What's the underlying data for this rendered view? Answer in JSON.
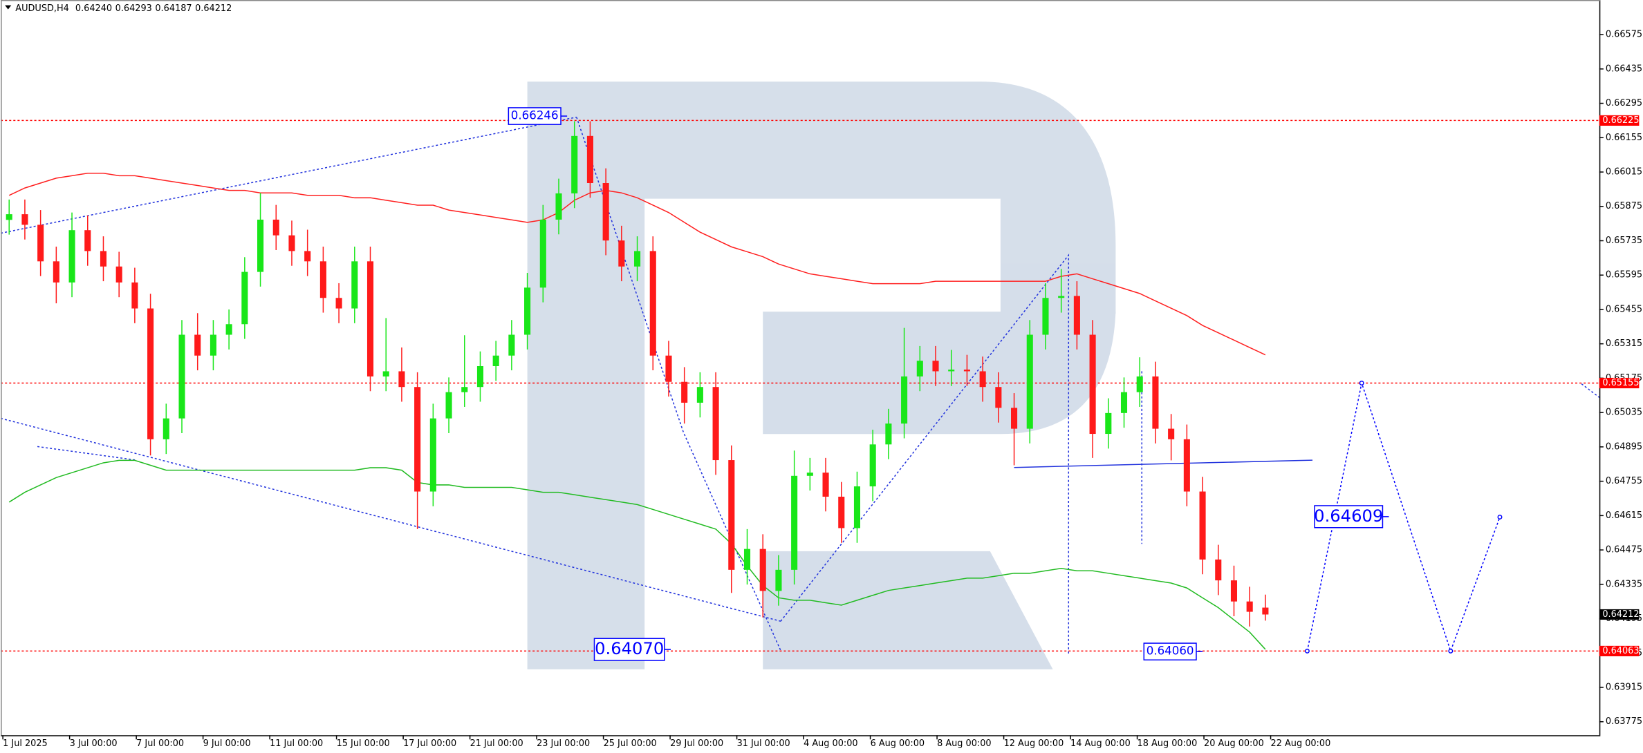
{
  "chart_data": {
    "type": "candlestick",
    "title": "AUDUSD,H4",
    "header_values": [
      "0.64240",
      "0.64293",
      "0.64187",
      "0.64212"
    ],
    "up_color": "#19e619",
    "down_color": "#ff1a1a",
    "open": [
      0.6582,
      0.65843,
      0.658,
      0.65651,
      0.65565,
      0.65778,
      0.65693,
      0.6563,
      0.65565,
      0.65459,
      0.64926,
      0.65011,
      0.65352,
      0.65267,
      0.65352,
      0.65395,
      0.65608,
      0.65821,
      0.65757,
      0.65693,
      0.65651,
      0.65502,
      0.65459,
      0.65651,
      0.65182,
      0.65203,
      0.65139,
      0.64713,
      0.65011,
      0.65118,
      0.65139,
      0.65224,
      0.65267,
      0.65352,
      0.65544,
      0.65821,
      0.65928,
      0.66162,
      0.6597,
      0.65736,
      0.6563,
      0.65693,
      0.65267,
      0.6516,
      0.65075,
      0.65139,
      0.64841,
      0.64394,
      0.64479,
      0.64308,
      0.64394,
      0.64777,
      0.6479,
      0.64692,
      0.64564,
      0.64734,
      0.64905,
      0.6499,
      0.65182,
      0.65246,
      0.65203,
      0.6521,
      0.65203,
      0.65139,
      0.65054,
      0.64969,
      0.65352,
      0.65502,
      0.6551,
      0.65352,
      0.64948,
      0.65033,
      0.65118,
      0.65182,
      0.64969,
      0.64926,
      0.64713,
      0.64436,
      0.64351,
      0.64265,
      0.6424
    ],
    "high": [
      0.65903,
      0.65903,
      0.6586,
      0.65711,
      0.6585,
      0.65838,
      0.65753,
      0.6569,
      0.65625,
      0.65519,
      0.65071,
      0.65412,
      0.6544,
      0.65412,
      0.65455,
      0.65668,
      0.6593,
      0.65881,
      0.65817,
      0.6578,
      0.65711,
      0.65562,
      0.65711,
      0.65711,
      0.6542,
      0.653,
      0.65199,
      0.65071,
      0.65178,
      0.6535,
      0.65284,
      0.65327,
      0.65412,
      0.65604,
      0.65881,
      0.65988,
      0.66222,
      0.66222,
      0.6603,
      0.65796,
      0.65753,
      0.65753,
      0.65327,
      0.6522,
      0.65199,
      0.65199,
      0.64901,
      0.6456,
      0.64539,
      0.64454,
      0.6488,
      0.6485,
      0.6485,
      0.64752,
      0.64794,
      0.64965,
      0.6505,
      0.6538,
      0.65306,
      0.65306,
      0.6529,
      0.6527,
      0.65263,
      0.65199,
      0.65114,
      0.65412,
      0.65562,
      0.6562,
      0.6557,
      0.65412,
      0.65093,
      0.65178,
      0.6526,
      0.65242,
      0.65029,
      0.64986,
      0.64773,
      0.64496,
      0.64411,
      0.64325,
      0.64293
    ],
    "low": [
      0.6576,
      0.6574,
      0.65591,
      0.6548,
      0.65505,
      0.65633,
      0.6557,
      0.65505,
      0.65399,
      0.6486,
      0.64866,
      0.64951,
      0.65207,
      0.65207,
      0.65292,
      0.65335,
      0.65548,
      0.65697,
      0.65633,
      0.65591,
      0.65442,
      0.65399,
      0.65399,
      0.65122,
      0.65122,
      0.65079,
      0.6456,
      0.64653,
      0.64951,
      0.65058,
      0.65079,
      0.65164,
      0.65207,
      0.65292,
      0.65484,
      0.65761,
      0.65868,
      0.6591,
      0.65676,
      0.6557,
      0.6557,
      0.65207,
      0.651,
      0.6499,
      0.65015,
      0.64781,
      0.643,
      0.64334,
      0.642,
      0.64248,
      0.64334,
      0.64717,
      0.64632,
      0.64504,
      0.64504,
      0.64674,
      0.64845,
      0.6493,
      0.65122,
      0.65143,
      0.65143,
      0.65143,
      0.65079,
      0.64994,
      0.6482,
      0.64909,
      0.65292,
      0.65442,
      0.65292,
      0.6485,
      0.64888,
      0.64973,
      0.65058,
      0.64909,
      0.6484,
      0.64653,
      0.64376,
      0.64291,
      0.64205,
      0.64163,
      0.64187
    ],
    "close": [
      0.65843,
      0.658,
      0.65651,
      0.65565,
      0.65778,
      0.65693,
      0.6563,
      0.65565,
      0.65459,
      0.64926,
      0.65011,
      0.65352,
      0.65267,
      0.65352,
      0.65395,
      0.65608,
      0.65821,
      0.65757,
      0.65693,
      0.65651,
      0.65502,
      0.65459,
      0.65651,
      0.65182,
      0.65203,
      0.65139,
      0.64713,
      0.65011,
      0.65118,
      0.65139,
      0.65224,
      0.65267,
      0.65352,
      0.65544,
      0.65821,
      0.65928,
      0.66162,
      0.6597,
      0.65736,
      0.6563,
      0.65693,
      0.65267,
      0.6516,
      0.65075,
      0.65139,
      0.64841,
      0.64394,
      0.64479,
      0.64308,
      0.64394,
      0.64777,
      0.6479,
      0.64692,
      0.64564,
      0.64734,
      0.64905,
      0.6499,
      0.65182,
      0.65246,
      0.65203,
      0.6521,
      0.65203,
      0.65139,
      0.65054,
      0.64969,
      0.65352,
      0.65502,
      0.6551,
      0.65352,
      0.64948,
      0.65033,
      0.65118,
      0.65182,
      0.64969,
      0.64926,
      0.64713,
      0.64436,
      0.64351,
      0.64265,
      0.64223,
      0.64212
    ],
    "overlays": [
      {
        "color": "#ff2020",
        "values": [
          0.6592,
          0.6595,
          0.6597,
          0.6599,
          0.66,
          0.6601,
          0.6601,
          0.66,
          0.66,
          0.6599,
          0.6598,
          0.6597,
          0.6596,
          0.6595,
          0.6594,
          0.6594,
          0.6593,
          0.6593,
          0.6593,
          0.6592,
          0.6592,
          0.6592,
          0.6591,
          0.6591,
          0.659,
          0.6589,
          0.6588,
          0.6588,
          0.6586,
          0.6585,
          0.6584,
          0.6583,
          0.6582,
          0.6581,
          0.6582,
          0.6585,
          0.659,
          0.6593,
          0.6594,
          0.6593,
          0.6591,
          0.6588,
          0.6585,
          0.6581,
          0.6577,
          0.6574,
          0.6571,
          0.6569,
          0.6567,
          0.6564,
          0.6562,
          0.656,
          0.6559,
          0.6558,
          0.6557,
          0.6556,
          0.6556,
          0.6556,
          0.6556,
          0.6557,
          0.6557,
          0.6557,
          0.6557,
          0.6557,
          0.6557,
          0.6557,
          0.6557,
          0.6559,
          0.656,
          0.6558,
          0.6556,
          0.6554,
          0.6552,
          0.6549,
          0.6546,
          0.6543,
          0.6539,
          0.6536,
          0.6533,
          0.653,
          0.6527
        ]
      },
      {
        "color": "#22bb22",
        "values": [
          0.6467,
          0.6471,
          0.6474,
          0.6477,
          0.6479,
          0.6481,
          0.6483,
          0.6484,
          0.6484,
          0.6482,
          0.648,
          0.648,
          0.648,
          0.648,
          0.648,
          0.648,
          0.648,
          0.648,
          0.648,
          0.648,
          0.648,
          0.648,
          0.648,
          0.6481,
          0.6481,
          0.648,
          0.6475,
          0.6474,
          0.6474,
          0.6473,
          0.6473,
          0.6473,
          0.6473,
          0.6472,
          0.6471,
          0.6471,
          0.647,
          0.6469,
          0.6468,
          0.6467,
          0.6466,
          0.6464,
          0.6462,
          0.646,
          0.6458,
          0.6456,
          0.645,
          0.6441,
          0.6433,
          0.6428,
          0.6427,
          0.6427,
          0.6426,
          0.6425,
          0.6427,
          0.6429,
          0.6431,
          0.6432,
          0.6433,
          0.6434,
          0.6435,
          0.6436,
          0.6436,
          0.6437,
          0.6438,
          0.6438,
          0.6439,
          0.644,
          0.6439,
          0.6439,
          0.6438,
          0.6437,
          0.6436,
          0.6435,
          0.6434,
          0.6432,
          0.6428,
          0.6424,
          0.6419,
          0.6414,
          0.6407
        ]
      }
    ],
    "forecast": {
      "color": "#0000ff",
      "values": [
        0.64063,
        0.65155,
        0.64063,
        0.64609
      ]
    },
    "levels": [
      {
        "value": 0.66225,
        "color": "#ff0000"
      },
      {
        "value": 0.65155,
        "color": "#ff0000"
      },
      {
        "value": 0.64063,
        "color": "#ff0000"
      }
    ],
    "current_price": 0.64212,
    "annotations": [
      "0.66246",
      "0.64070",
      "0.64060",
      "0.64609"
    ],
    "ylim": [
      0.6372,
      0.66716
    ],
    "yticks": [
      0.66575,
      0.66435,
      0.66295,
      0.66155,
      0.66015,
      0.65875,
      0.65735,
      0.65595,
      0.65455,
      0.65315,
      0.65175,
      0.65035,
      0.64895,
      0.64755,
      0.64615,
      0.64475,
      0.64335,
      0.64195,
      0.64055,
      0.63915,
      0.63775
    ],
    "x_labels": [
      "1 Jul 2025",
      "3 Jul 00:00",
      "7 Jul 00:00",
      "9 Jul 00:00",
      "11 Jul 00:00",
      "15 Jul 00:00",
      "17 Jul 00:00",
      "21 Jul 00:00",
      "23 Jul 00:00",
      "25 Jul 00:00",
      "29 Jul 00:00",
      "31 Jul 00:00",
      "4 Aug 00:00",
      "6 Aug 00:00",
      "8 Aug 00:00",
      "12 Aug 00:00",
      "14 Aug 00:00",
      "18 Aug 00:00",
      "20 Aug 00:00",
      "22 Aug 00:00"
    ]
  }
}
